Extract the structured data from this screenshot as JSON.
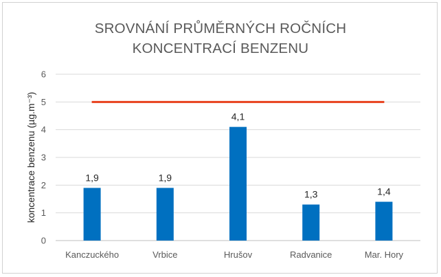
{
  "chart_data": {
    "type": "bar",
    "title_line1": "SROVNÁNÍ PRŮMĚRNÝCH ROČNÍCH",
    "title_line2": "KONCENTRACÍ BENZENU",
    "ylabel": "koncentrace benzenu (µg.m⁻³)",
    "xlabel": "",
    "categories": [
      "Kanczuckého",
      "Vrbice",
      "Hrušov",
      "Radvanice",
      "Mar. Hory"
    ],
    "values": [
      1.9,
      1.9,
      4.1,
      1.3,
      1.4
    ],
    "value_labels": [
      "1,9",
      "1,9",
      "4,1",
      "1,3",
      "1,4"
    ],
    "ylim": [
      0,
      6
    ],
    "yticks": [
      0,
      1,
      2,
      3,
      4,
      5,
      6
    ],
    "grid": true,
    "limit_line": {
      "value": 5
    },
    "colors": {
      "bar": "#0070c0",
      "limit": "#e8401c",
      "grid": "#d9d9d9"
    }
  }
}
